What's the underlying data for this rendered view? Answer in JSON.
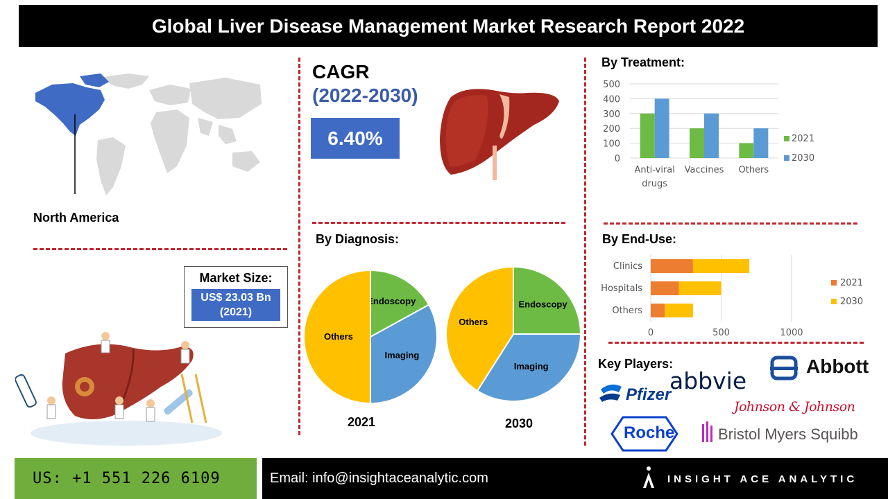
{
  "header": {
    "title": "Global Liver Disease Management Market Research Report 2022"
  },
  "region": {
    "label": "North America"
  },
  "cagr": {
    "label": "CAGR",
    "period": "(2022-2030)",
    "value": "6.40%"
  },
  "market_size": {
    "title": "Market Size:",
    "value_line1": "US$ 23.03 Bn",
    "value_line2": "(2021)"
  },
  "sections": {
    "treatment": "By Treatment:",
    "diagnosis": "By Diagnosis:",
    "end_use": "By End-Use:",
    "key_players": "Key Players:"
  },
  "colors": {
    "series_2021_treatment": "#6dbb45",
    "series_2030_treatment": "#5b9bd5",
    "series_2021_enduse": "#ed7d31",
    "series_2030_enduse": "#ffc000",
    "pie_others": "#ffc000",
    "pie_endoscopy": "#6dbb45",
    "pie_imaging": "#5b9bd5",
    "accent_blue": "#3f6bc4",
    "dash_red": "#c0262c"
  },
  "chart_data": [
    {
      "type": "bar",
      "categories": [
        "Anti-viral drugs",
        "Vaccines",
        "Others"
      ],
      "category_lines": [
        [
          "Anti-viral",
          "drugs"
        ],
        [
          "Vaccines"
        ],
        [
          "Others"
        ]
      ],
      "series": [
        {
          "name": "2021",
          "values": [
            300,
            200,
            100
          ]
        },
        {
          "name": "2030",
          "values": [
            400,
            300,
            200
          ]
        }
      ],
      "ylim": [
        0,
        500
      ],
      "yticks": [
        "0",
        "100",
        "200",
        "300",
        "400",
        "500"
      ],
      "grid": true,
      "legend": "right"
    },
    {
      "type": "bar",
      "orientation": "horizontal",
      "stacked": true,
      "categories": [
        "Clinics",
        "Hospitals",
        "Others"
      ],
      "series": [
        {
          "name": "2021",
          "values": [
            300,
            200,
            100
          ]
        },
        {
          "name": "2030",
          "values": [
            400,
            300,
            200
          ]
        }
      ],
      "xlim": [
        0,
        1000
      ],
      "xticks": [
        "0",
        "500",
        "1000"
      ],
      "grid": true,
      "legend": "right"
    },
    {
      "type": "pie",
      "year": "2021",
      "labels": [
        "Others",
        "Endoscopy",
        "Imaging"
      ],
      "values": [
        50,
        17,
        33
      ]
    },
    {
      "type": "pie",
      "year": "2030",
      "labels": [
        "Others",
        "Endoscopy",
        "Imaging"
      ],
      "values": [
        41,
        25,
        34
      ]
    }
  ],
  "key_players": [
    "Abbott",
    "Pfizer",
    "abbvie",
    "Johnson & Johnson",
    "Roche",
    "Bristol Myers Squibb"
  ],
  "footer": {
    "phone": "US: +1 551 226 6109",
    "email": "Email: info@insightaceanalytic.com",
    "brand": "INSIGHT ACE ANALYTIC"
  },
  "icons": [
    "world-map-icon",
    "liver-icon",
    "liver-clinic-illustration-icon",
    "insight-ace-logo-icon"
  ]
}
